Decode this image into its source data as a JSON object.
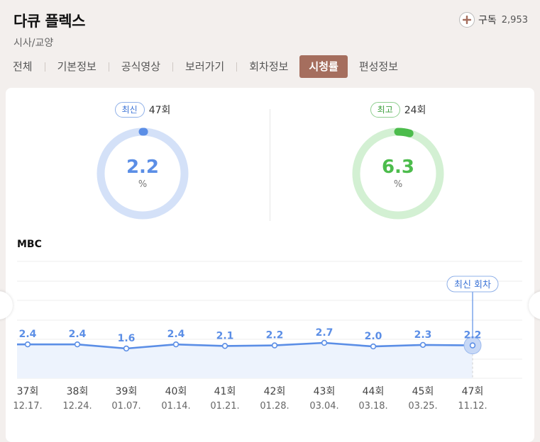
{
  "program": {
    "title": "다큐 플렉스",
    "genre": "시사/교양"
  },
  "subscribe": {
    "label": "구독",
    "count": "2,953",
    "icon": "plus-icon"
  },
  "tabs": [
    {
      "label": "전체",
      "active": false
    },
    {
      "label": "기본정보",
      "active": false
    },
    {
      "label": "공식영상",
      "active": false
    },
    {
      "label": "보러가기",
      "active": false
    },
    {
      "label": "회차정보",
      "active": false
    },
    {
      "label": "시청률",
      "active": true
    },
    {
      "label": "편성정보",
      "active": false
    }
  ],
  "stats": {
    "latest": {
      "badge": "최신",
      "episode": "47회",
      "value": "2.2",
      "unit": "%",
      "color": "#5b8ee6",
      "track": "#d4e1f8"
    },
    "best": {
      "badge": "최고",
      "episode": "24회",
      "value": "6.3",
      "unit": "%",
      "color": "#4cbc4c",
      "track": "#d3f0d3"
    }
  },
  "channel": "MBC",
  "latest_tooltip": "최신 회차",
  "colors": {
    "tab_active": "#a56e5e",
    "line": "#5b8ee6",
    "fill": "#edf3fd"
  },
  "chart_data": {
    "type": "area",
    "categories": [
      "37회",
      "38회",
      "39회",
      "40회",
      "41회",
      "42회",
      "43회",
      "44회",
      "45회",
      "47회"
    ],
    "dates": [
      "12.17.",
      "12.24.",
      "01.07.",
      "01.14.",
      "01.21.",
      "01.28.",
      "03.04.",
      "03.18.",
      "03.25.",
      "11.12."
    ],
    "values": [
      2.4,
      2.4,
      1.6,
      2.4,
      2.1,
      2.2,
      2.7,
      2.0,
      2.3,
      2.2
    ],
    "value_labels": [
      "2.4",
      "2.4",
      "1.6",
      "2.4",
      "2.1",
      "2.2",
      "2.7",
      "2.0",
      "2.3",
      "2.2"
    ],
    "highlight_index": 9,
    "grid": true
  }
}
